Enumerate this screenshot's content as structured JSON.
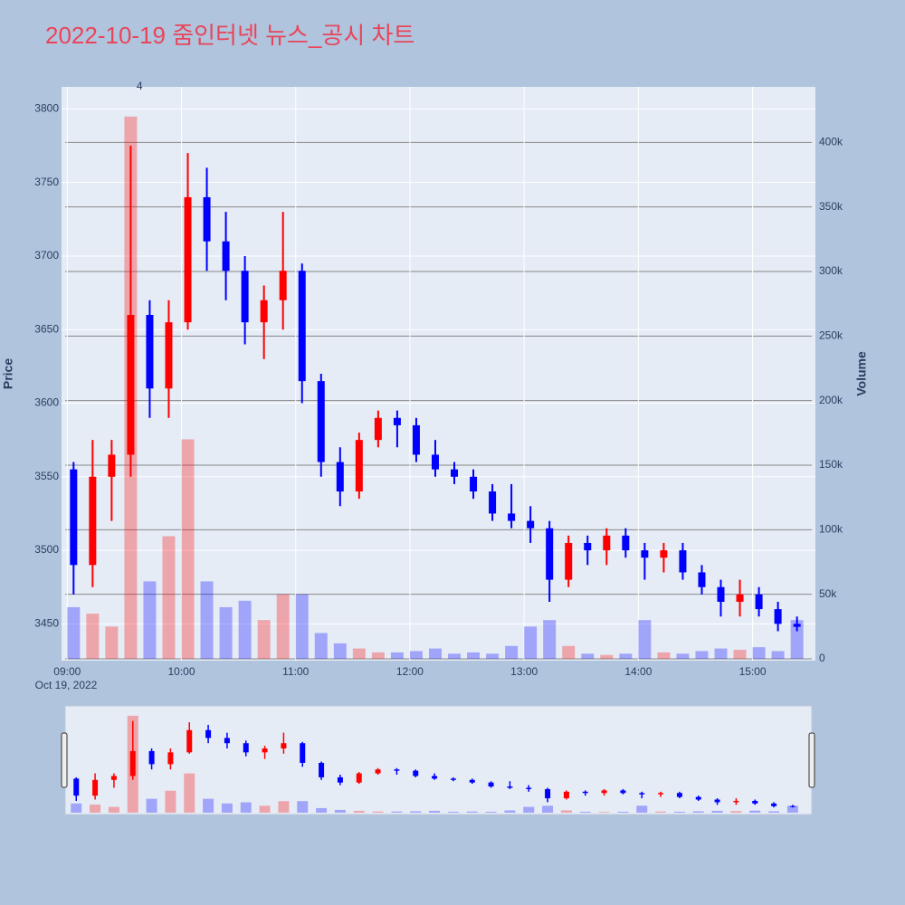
{
  "chart_data": {
    "type": "candlestick",
    "title": "2022-10-19 줌인터넷 뉴스_공시 차트",
    "y_label": "Price",
    "y2_label": "Volume",
    "x_date_label": "Oct 19, 2022",
    "increasing_color": "#ff0000",
    "decreasing_color": "#0000ff",
    "x": [
      "2022-10-19 09:00",
      "2022-10-19 09:10",
      "2022-10-19 09:20",
      "2022-10-19 09:30",
      "2022-10-19 09:40",
      "2022-10-19 09:50",
      "2022-10-19 10:00",
      "2022-10-19 10:10",
      "2022-10-19 10:20",
      "2022-10-19 10:30",
      "2022-10-19 10:40",
      "2022-10-19 10:50",
      "2022-10-19 11:00",
      "2022-10-19 11:10",
      "2022-10-19 11:20",
      "2022-10-19 11:30",
      "2022-10-19 11:40",
      "2022-10-19 11:50",
      "2022-10-19 12:00",
      "2022-10-19 12:10",
      "2022-10-19 12:20",
      "2022-10-19 12:30",
      "2022-10-19 12:40",
      "2022-10-19 12:50",
      "2022-10-19 13:00",
      "2022-10-19 13:10",
      "2022-10-19 13:20",
      "2022-10-19 13:30",
      "2022-10-19 13:40",
      "2022-10-19 13:50",
      "2022-10-19 14:00",
      "2022-10-19 14:10",
      "2022-10-19 14:20",
      "2022-10-19 14:30",
      "2022-10-19 14:40",
      "2022-10-19 14:50",
      "2022-10-19 15:00",
      "2022-10-19 15:10",
      "2022-10-19 15:20"
    ],
    "open": [
      3555,
      3490,
      3550,
      3565,
      3660,
      3610,
      3655,
      3740,
      3710,
      3690,
      3655,
      3670,
      3690,
      3615,
      3560,
      3540,
      3575,
      3590,
      3585,
      3565,
      3555,
      3550,
      3540,
      3525,
      3520,
      3515,
      3480,
      3505,
      3500,
      3510,
      3500,
      3495,
      3500,
      3485,
      3475,
      3465,
      3470,
      3460,
      3450
    ],
    "high": [
      3560,
      3575,
      3575,
      3775,
      3670,
      3670,
      3770,
      3760,
      3730,
      3700,
      3680,
      3730,
      3695,
      3620,
      3570,
      3580,
      3595,
      3595,
      3590,
      3575,
      3560,
      3555,
      3545,
      3545,
      3530,
      3520,
      3510,
      3510,
      3515,
      3515,
      3505,
      3505,
      3505,
      3490,
      3480,
      3480,
      3475,
      3465,
      3455
    ],
    "low": [
      3470,
      3475,
      3520,
      3550,
      3590,
      3590,
      3650,
      3690,
      3670,
      3640,
      3630,
      3650,
      3600,
      3550,
      3530,
      3535,
      3570,
      3570,
      3560,
      3550,
      3545,
      3535,
      3520,
      3515,
      3505,
      3465,
      3475,
      3490,
      3490,
      3495,
      3480,
      3485,
      3480,
      3470,
      3455,
      3455,
      3455,
      3445,
      3445
    ],
    "close": [
      3490,
      3550,
      3565,
      3660,
      3610,
      3655,
      3740,
      3710,
      3690,
      3655,
      3670,
      3690,
      3615,
      3560,
      3540,
      3575,
      3590,
      3585,
      3565,
      3555,
      3550,
      3540,
      3525,
      3520,
      3515,
      3480,
      3505,
      3500,
      3510,
      3500,
      3495,
      3500,
      3485,
      3475,
      3465,
      3470,
      3460,
      3450,
      3448
    ],
    "volume": [
      40000,
      35000,
      25000,
      420000,
      60000,
      95000,
      170000,
      60000,
      40000,
      45000,
      30000,
      50000,
      50000,
      20000,
      12000,
      8000,
      5000,
      5000,
      6000,
      8000,
      4000,
      5000,
      4000,
      10000,
      25000,
      30000,
      10000,
      4000,
      3000,
      4000,
      30000,
      5000,
      4000,
      6000,
      8000,
      7000,
      9000,
      6000,
      30000
    ],
    "annotations": [
      {
        "x": "2022-10-19 09:38",
        "text": "4"
      }
    ],
    "xlim": [
      "2022-10-19 08:57",
      "2022-10-19 15:33"
    ],
    "xticks": [
      {
        "value": "2022-10-19 09:00",
        "label": "09:00"
      },
      {
        "value": "2022-10-19 10:00",
        "label": "10:00"
      },
      {
        "value": "2022-10-19 11:00",
        "label": "11:00"
      },
      {
        "value": "2022-10-19 12:00",
        "label": "12:00"
      },
      {
        "value": "2022-10-19 13:00",
        "label": "13:00"
      },
      {
        "value": "2022-10-19 14:00",
        "label": "14:00"
      },
      {
        "value": "2022-10-19 15:00",
        "label": "15:00"
      }
    ],
    "ylim": [
      3425,
      3815
    ],
    "yticks": [
      3450,
      3500,
      3550,
      3600,
      3650,
      3700,
      3750,
      3800
    ],
    "y2lim": [
      0,
      443000
    ],
    "y2ticks": [
      0,
      {
        "value": 50000,
        "label": "50k"
      },
      {
        "value": 100000,
        "label": "100k"
      },
      {
        "value": 150000,
        "label": "150k"
      },
      {
        "value": 200000,
        "label": "200k"
      },
      {
        "value": 250000,
        "label": "250k"
      },
      {
        "value": 300000,
        "label": "300k"
      },
      {
        "value": 350000,
        "label": "350k"
      },
      {
        "value": 400000,
        "label": "400k"
      }
    ]
  }
}
